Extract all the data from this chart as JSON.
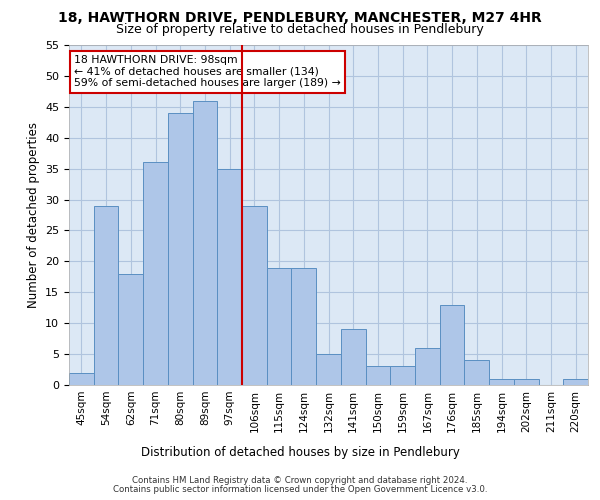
{
  "title_line1": "18, HAWTHORN DRIVE, PENDLEBURY, MANCHESTER, M27 4HR",
  "title_line2": "Size of property relative to detached houses in Pendlebury",
  "xlabel": "Distribution of detached houses by size in Pendlebury",
  "ylabel": "Number of detached properties",
  "bar_labels": [
    "45sqm",
    "54sqm",
    "62sqm",
    "71sqm",
    "80sqm",
    "89sqm",
    "97sqm",
    "106sqm",
    "115sqm",
    "124sqm",
    "132sqm",
    "141sqm",
    "150sqm",
    "159sqm",
    "167sqm",
    "176sqm",
    "185sqm",
    "194sqm",
    "202sqm",
    "211sqm",
    "220sqm"
  ],
  "bar_values": [
    2,
    29,
    18,
    36,
    44,
    46,
    35,
    29,
    19,
    19,
    5,
    9,
    3,
    3,
    6,
    13,
    4,
    1,
    1,
    0,
    1
  ],
  "bar_color": "#aec6e8",
  "bar_edge_color": "#5a8fc2",
  "vline_index": 6,
  "annotation_line1": "18 HAWTHORN DRIVE: 98sqm",
  "annotation_line2": "← 41% of detached houses are smaller (134)",
  "annotation_line3": "59% of semi-detached houses are larger (189) →",
  "annotation_box_color": "#ffffff",
  "annotation_box_edgecolor": "#cc0000",
  "vline_color": "#cc0000",
  "ylim": [
    0,
    55
  ],
  "yticks": [
    0,
    5,
    10,
    15,
    20,
    25,
    30,
    35,
    40,
    45,
    50,
    55
  ],
  "grid_color": "#b0c4de",
  "bg_color": "#dce8f5",
  "footer_line1": "Contains HM Land Registry data © Crown copyright and database right 2024.",
  "footer_line2": "Contains public sector information licensed under the Open Government Licence v3.0."
}
